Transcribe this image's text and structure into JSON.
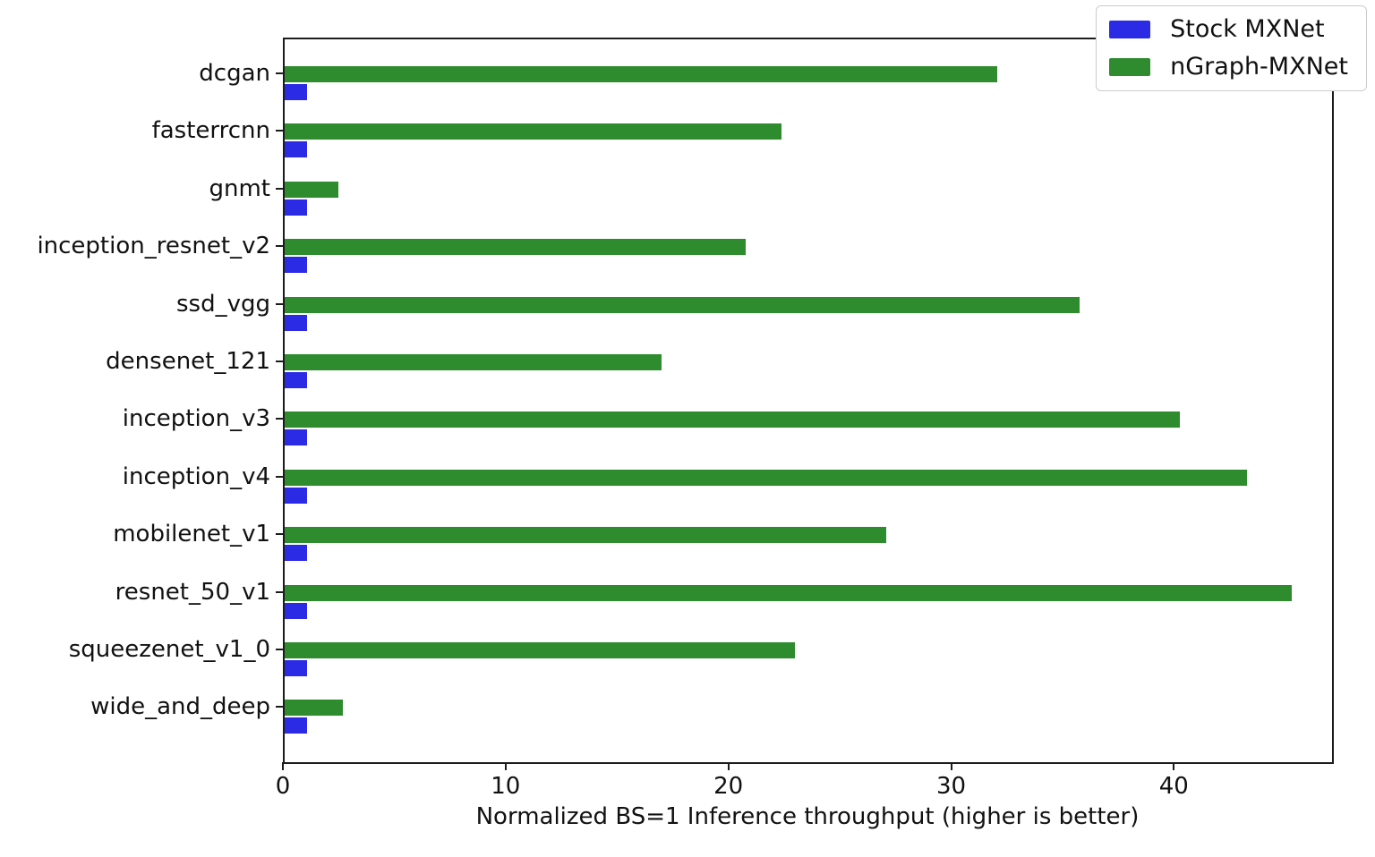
{
  "figure": {
    "background": "#ffffff",
    "text_color": "#111111",
    "spine_color": "#1c1c1c"
  },
  "chart_data": {
    "type": "bar",
    "orientation": "horizontal",
    "title": "",
    "xlabel": "Normalized BS=1 Inference throughput (higher is better)",
    "ylabel": "",
    "categories": [
      "dcgan",
      "fasterrcnn",
      "gnmt",
      "inception_resnet_v2",
      "ssd_vgg",
      "densenet_121",
      "inception_v3",
      "inception_v4",
      "mobilenet_v1",
      "resnet_50_v1",
      "squeezenet_v1_0",
      "wide_and_deep"
    ],
    "series": [
      {
        "name": "Stock MXNet",
        "color": "#2b2be6",
        "values": [
          1.0,
          1.0,
          1.0,
          1.0,
          1.0,
          1.0,
          1.0,
          1.0,
          1.0,
          1.0,
          1.0,
          1.0
        ]
      },
      {
        "name": "nGraph-MXNet",
        "color": "#2e8b2e",
        "values": [
          32.0,
          22.3,
          2.4,
          20.7,
          35.7,
          16.9,
          40.2,
          43.2,
          27.0,
          45.2,
          22.9,
          2.6
        ]
      }
    ],
    "bar_order_top_first": [
      "nGraph-MXNet",
      "Stock MXNet"
    ],
    "xlim": [
      0,
      47.1
    ],
    "xticks": [
      0,
      10,
      20,
      30,
      40
    ],
    "grid": false,
    "legend_position": "upper right",
    "legend_entries": [
      "Stock MXNet",
      "nGraph-MXNet"
    ]
  }
}
